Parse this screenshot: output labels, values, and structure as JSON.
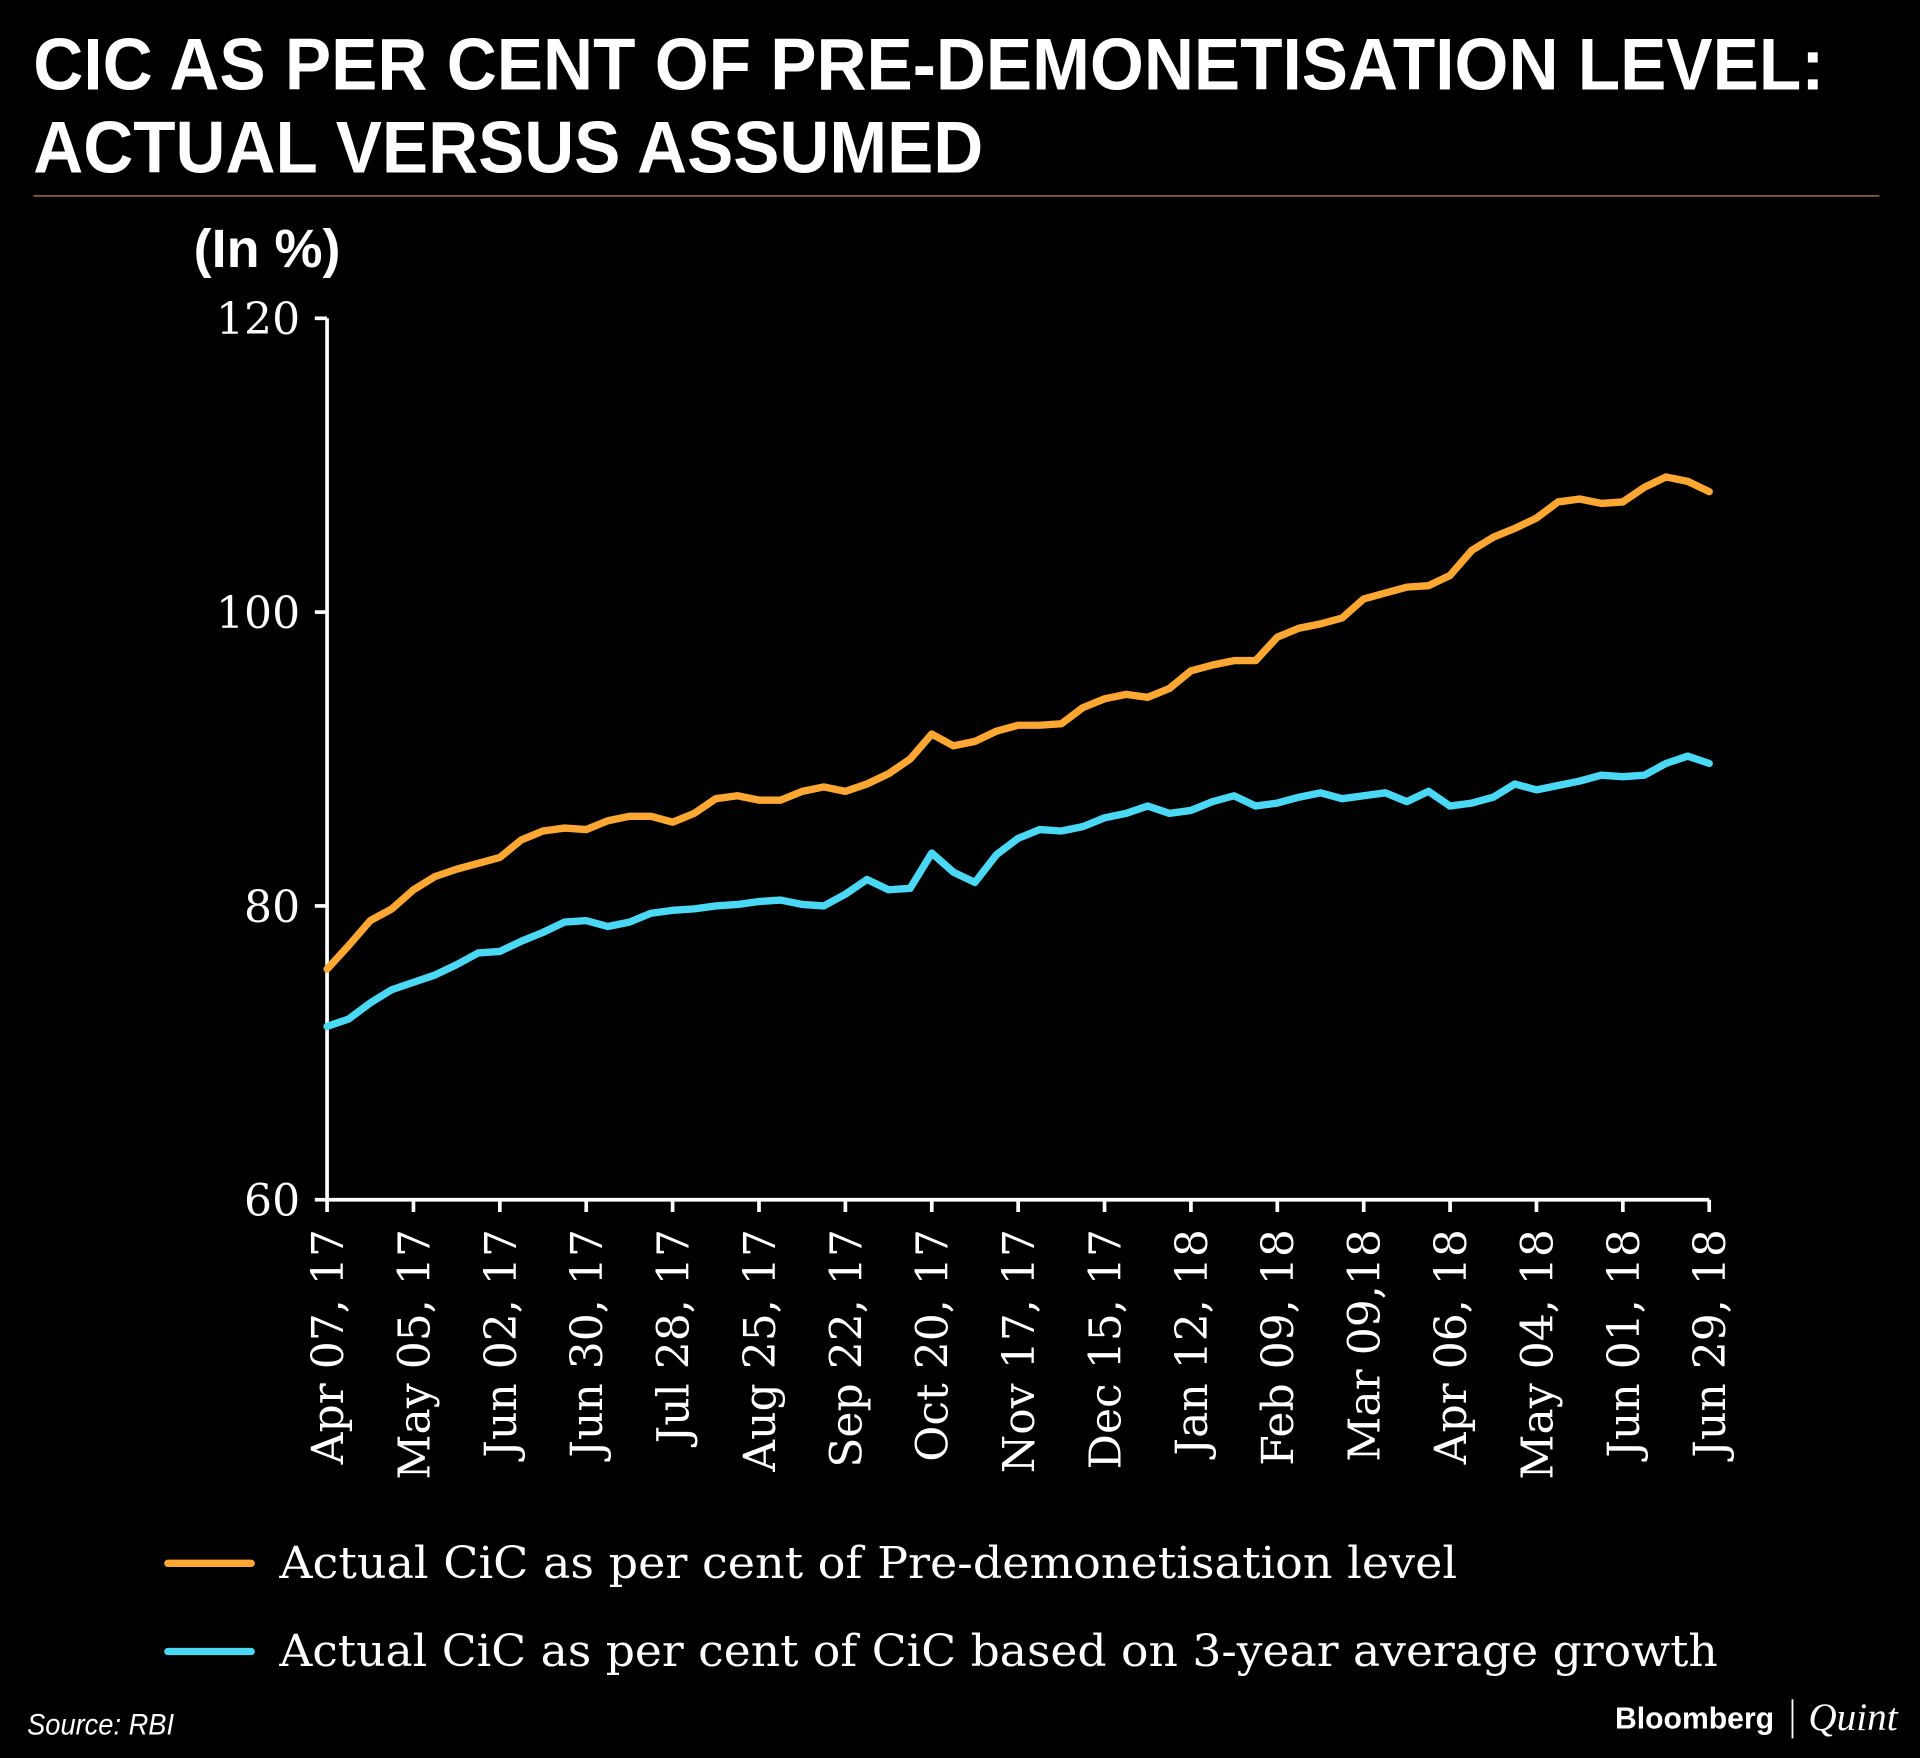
{
  "chart_data": {
    "type": "line",
    "title": "CIC AS PER CENT OF PRE-DEMONETISATION LEVEL: ACTUAL VERSUS ASSUMED",
    "title_lines": [
      "CIC AS PER CENT OF PRE-DEMONETISATION LEVEL:",
      "ACTUAL VERSUS ASSUMED"
    ],
    "ylabel": "(In %)",
    "xlabel": "",
    "ylim": [
      60,
      120
    ],
    "yticks": [
      "60",
      "80",
      "100",
      "120"
    ],
    "ytick_values": [
      60,
      80,
      100,
      120
    ],
    "x_points": 65,
    "x_frequency": "weekly",
    "xtick_labels": [
      "Apr 07, 17",
      "May 05, 17",
      "Jun 02, 17",
      "Jun 30, 17",
      "Jul 28, 17",
      "Aug 25, 17",
      "Sep 22, 17",
      "Oct 20, 17",
      "Nov 17, 17",
      "Dec 15, 17",
      "Jan 12, 18",
      "Feb 09, 18",
      "Mar 09,18",
      "Apr 06, 18",
      "May 04, 18",
      "Jun 01, 18",
      "Jun 29, 18"
    ],
    "xtick_every": 4,
    "grid": false,
    "legend_position": "bottom",
    "series": [
      {
        "name": "Actual CiC as per cent of Pre-demonetisation level",
        "color": "#ffa733",
        "values": [
          75.7,
          77.3,
          79.0,
          79.8,
          81.1,
          82.0,
          82.5,
          82.9,
          83.3,
          84.5,
          85.1,
          85.3,
          85.2,
          85.8,
          86.1,
          86.1,
          85.7,
          86.3,
          87.3,
          87.5,
          87.2,
          87.2,
          87.8,
          88.1,
          87.8,
          88.3,
          89.0,
          90.0,
          91.7,
          90.9,
          91.2,
          91.9,
          92.3,
          92.3,
          92.4,
          93.5,
          94.1,
          94.4,
          94.2,
          94.8,
          96.0,
          96.4,
          96.7,
          96.7,
          98.3,
          98.9,
          99.2,
          99.6,
          100.9,
          101.3,
          101.7,
          101.8,
          102.5,
          104.2,
          105.1,
          105.7,
          106.4,
          107.5,
          107.7,
          107.4,
          107.5,
          108.5,
          109.2,
          108.9,
          108.2
        ]
      },
      {
        "name": "Actual CiC as per cent of CiC based on 3-year average growth",
        "color": "#4ad8f5",
        "values": [
          71.8,
          72.3,
          73.4,
          74.3,
          74.8,
          75.3,
          76.0,
          76.8,
          76.9,
          77.6,
          78.2,
          78.9,
          79.0,
          78.6,
          78.9,
          79.5,
          79.7,
          79.8,
          80.0,
          80.1,
          80.3,
          80.4,
          80.1,
          80.0,
          80.8,
          81.8,
          81.1,
          81.2,
          83.6,
          82.3,
          81.6,
          83.5,
          84.6,
          85.2,
          85.1,
          85.4,
          86.0,
          86.3,
          86.8,
          86.3,
          86.5,
          87.1,
          87.5,
          86.8,
          87.0,
          87.4,
          87.7,
          87.3,
          87.5,
          87.7,
          87.1,
          87.8,
          86.8,
          87.0,
          87.4,
          88.3,
          87.9,
          88.2,
          88.5,
          88.9,
          88.8,
          88.9,
          89.7,
          90.2,
          89.7
        ]
      }
    ]
  },
  "footer": {
    "source": "Source: RBI",
    "brand_primary": "Bloomberg",
    "brand_secondary": "Quint"
  },
  "colors": {
    "background": "#000000",
    "divider": "#8a5a3a",
    "axis": "#ffffff"
  }
}
